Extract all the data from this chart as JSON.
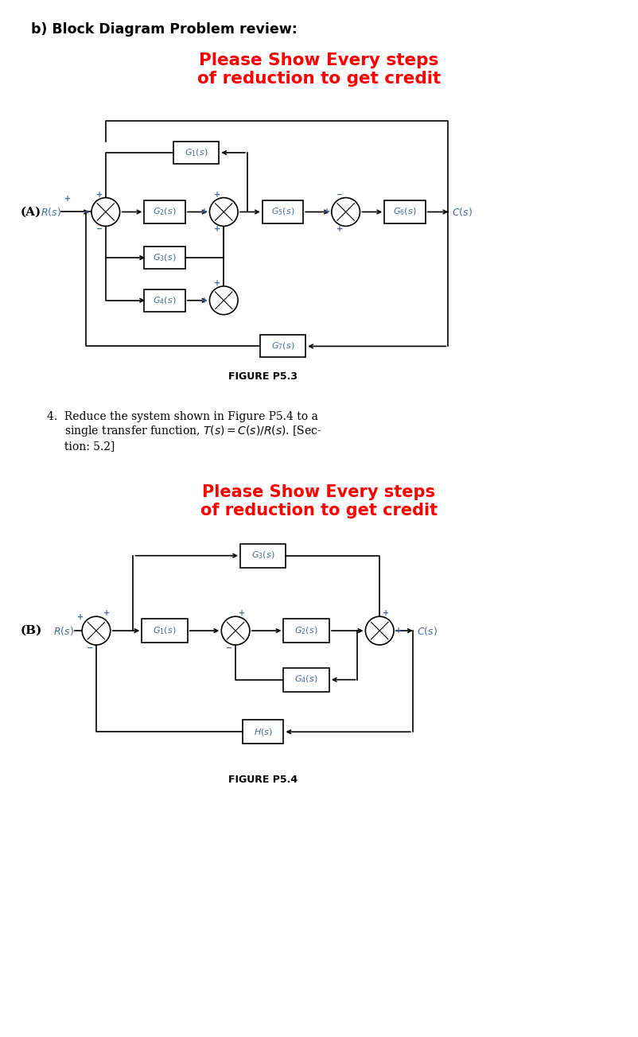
{
  "title_main": "b) Block Diagram Problem review:",
  "red_text_A": "Please Show Every steps\nof reduction to get credit",
  "label_A": "(A)",
  "label_B": "(B)",
  "fig_label_A": "FIGURE P5.3",
  "fig_label_B": "FIGURE P5.4",
  "red_text_B": "Please Show Every steps\nof reduction to get credit",
  "bg_color": "#ffffff",
  "block_color": "#ffffff",
  "block_edge": "#000000",
  "line_color": "#000000",
  "text_color_italic": "#4169aa",
  "red_color": "#ff0000",
  "circle_color": "#ffffff"
}
